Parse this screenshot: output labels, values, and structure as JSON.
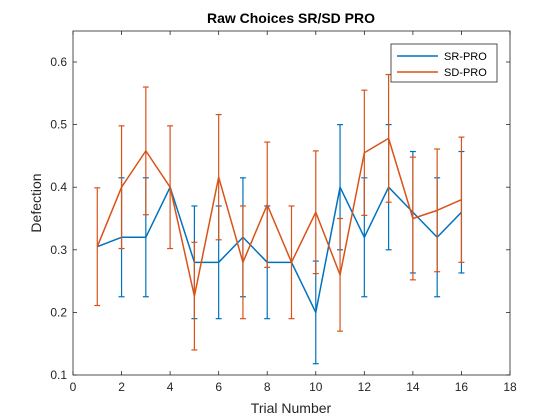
{
  "chart_data": {
    "type": "line",
    "title": "Raw Choices SR/SD PRO",
    "xlabel": "Trial Number",
    "ylabel": "Defection",
    "xlim": [
      0,
      18
    ],
    "ylim": [
      0.1,
      0.65
    ],
    "xticks": [
      0,
      2,
      4,
      6,
      8,
      10,
      12,
      14,
      16,
      18
    ],
    "yticks": [
      0.1,
      0.2,
      0.3,
      0.4,
      0.5,
      0.6
    ],
    "ytick_labels": [
      "0.1",
      "0.2",
      "0.3",
      "0.4",
      "0.5",
      "0.6"
    ],
    "grid": false,
    "legend_position": "top-right",
    "error_bars": true,
    "series": [
      {
        "name": "SR-PRO",
        "color": "#0072BD",
        "x": [
          1,
          2,
          3,
          4,
          5,
          6,
          7,
          8,
          9,
          10,
          11,
          12,
          13,
          14,
          15,
          16
        ],
        "y": [
          0.305,
          0.32,
          0.32,
          0.4,
          0.28,
          0.28,
          0.32,
          0.28,
          0.28,
          0.2,
          0.4,
          0.32,
          0.4,
          0.36,
          0.32,
          0.36
        ],
        "err": [
          0,
          0.095,
          0.095,
          0,
          0.09,
          0.09,
          0.095,
          0.09,
          0,
          0.082,
          0.1,
          0.095,
          0.1,
          0.097,
          0.095,
          0.097
        ]
      },
      {
        "name": "SD-PRO",
        "color": "#D95319",
        "x": [
          1,
          2,
          3,
          4,
          5,
          6,
          7,
          8,
          9,
          10,
          11,
          12,
          13,
          14,
          15,
          16
        ],
        "y": [
          0.305,
          0.4,
          0.458,
          0.4,
          0.226,
          0.416,
          0.28,
          0.372,
          0.28,
          0.36,
          0.26,
          0.455,
          0.478,
          0.35,
          0.363,
          0.38
        ],
        "err": [
          0.094,
          0.098,
          0.102,
          0.098,
          0.086,
          0.1,
          0.09,
          0.1,
          0.09,
          0.098,
          0.09,
          0.1,
          0.102,
          0.098,
          0.098,
          0.1
        ]
      }
    ]
  }
}
